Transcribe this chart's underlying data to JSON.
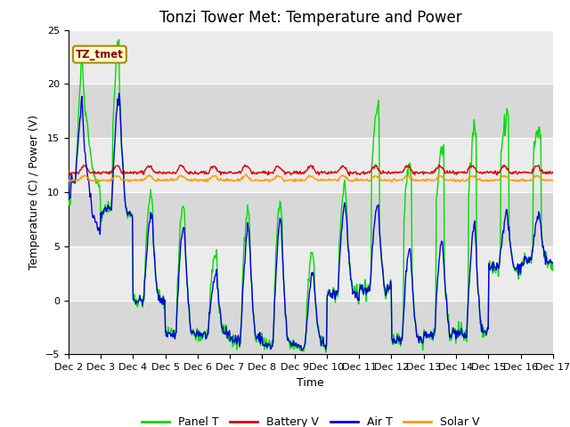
{
  "title": "Tonzi Tower Met: Temperature and Power",
  "ylabel": "Temperature (C) / Power (V)",
  "xlabel": "Time",
  "xlim": [
    0,
    360
  ],
  "ylim": [
    -5,
    25
  ],
  "yticks": [
    -5,
    0,
    5,
    10,
    15,
    20,
    25
  ],
  "xtick_labels": [
    "Dec 2",
    "Dec 3",
    "Dec 4",
    "Dec 5",
    "Dec 6",
    "Dec 7",
    "Dec 8",
    "Dec 9",
    "Dec 10",
    "Dec 11",
    "Dec 12",
    "Dec 13",
    "Dec 14",
    "Dec 15",
    "Dec 16",
    "Dec 17"
  ],
  "xtick_positions": [
    0,
    24,
    48,
    72,
    96,
    120,
    144,
    168,
    192,
    216,
    240,
    264,
    288,
    312,
    336,
    360
  ],
  "colors": {
    "panel_t": "#00dd00",
    "battery_v": "#dd0000",
    "air_t": "#0000dd",
    "solar_v": "#ff9900"
  },
  "legend_labels": [
    "Panel T",
    "Battery V",
    "Air T",
    "Solar V"
  ],
  "annotation": "TZ_tmet",
  "bg_light": "#ebebeb",
  "bg_dark": "#d8d8d8",
  "title_fontsize": 12,
  "axis_fontsize": 9,
  "tick_fontsize": 8
}
